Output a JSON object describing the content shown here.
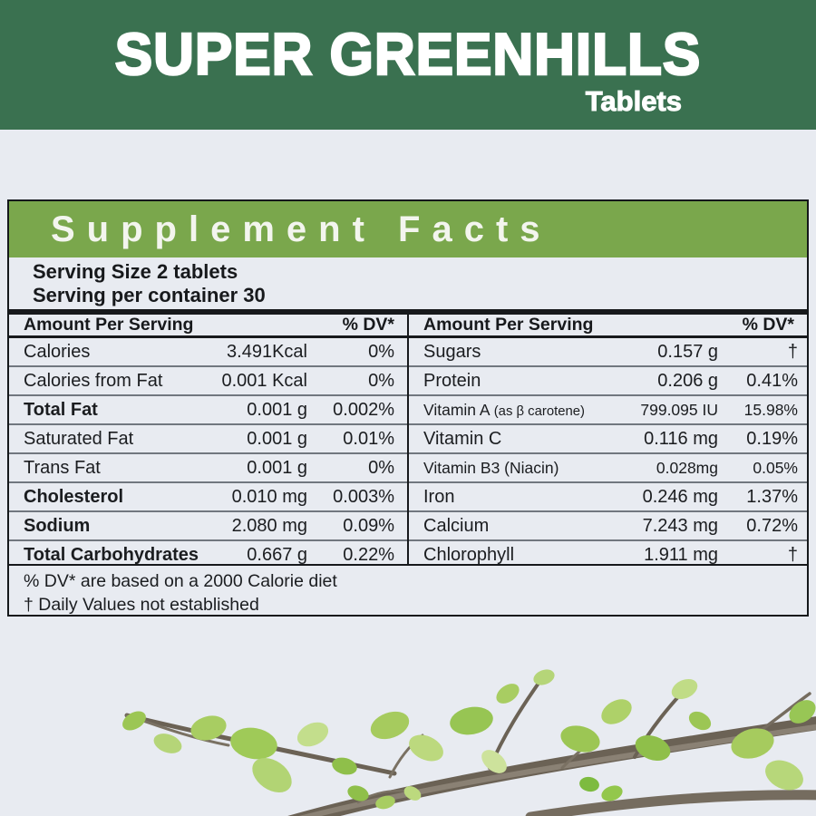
{
  "banner": {
    "title": "SUPER GREENHILLS",
    "subtitle": "Tablets",
    "bg_color": "#3a7150",
    "text_color": "#ffffff"
  },
  "panel": {
    "header": {
      "title": "Supplement Facts",
      "bg_color": "#7aa74c",
      "text_color": "#f3f5ee"
    },
    "serving": {
      "line1": "Serving Size 2 tablets",
      "line2": "Serving per container 30"
    },
    "columns": [
      {
        "header": {
          "amount_label": "Amount Per Serving",
          "dv_label": "% DV*"
        },
        "rows": [
          {
            "label": "Calories",
            "amount": "3.491Kcal",
            "dv": "0%",
            "bold": false
          },
          {
            "label": "Calories from Fat",
            "amount": "0.001 Kcal",
            "dv": "0%",
            "bold": false
          },
          {
            "label": "Total Fat",
            "amount": "0.001 g",
            "dv": "0.002%",
            "bold": true
          },
          {
            "label": "Saturated Fat",
            "amount": "0.001 g",
            "dv": "0.01%",
            "bold": false
          },
          {
            "label": "Trans Fat",
            "amount": "0.001 g",
            "dv": "0%",
            "bold": false
          },
          {
            "label": "Cholesterol",
            "amount": "0.010 mg",
            "dv": "0.003%",
            "bold": true
          },
          {
            "label": "Sodium",
            "amount": "2.080 mg",
            "dv": "0.09%",
            "bold": true
          },
          {
            "label": "Total Carbohydrates",
            "amount": "0.667 g",
            "dv": "0.22%",
            "bold": true
          }
        ]
      },
      {
        "header": {
          "amount_label": "Amount Per Serving",
          "dv_label": "% DV*"
        },
        "rows": [
          {
            "label": "Sugars",
            "amount": "0.157 g",
            "dv": "†",
            "bold": false
          },
          {
            "label": "Protein",
            "amount": "0.206 g",
            "dv": "0.41%",
            "bold": false
          },
          {
            "label": "Vitamin A",
            "label_note": "(as β carotene)",
            "amount": "799.095 IU",
            "dv": "15.98%",
            "bold": false,
            "compact": true
          },
          {
            "label": "Vitamin C",
            "amount": "0.116 mg",
            "dv": "0.19%",
            "bold": false
          },
          {
            "label": "Vitamin B3 (Niacin)",
            "amount": "0.028mg",
            "dv": "0.05%",
            "bold": false,
            "compact": true
          },
          {
            "label": "Iron",
            "amount": "0.246 mg",
            "dv": "1.37%",
            "bold": false
          },
          {
            "label": "Calcium",
            "amount": "7.243 mg",
            "dv": "0.72%",
            "bold": false
          },
          {
            "label": "Chlorophyll",
            "amount": "1.911 mg",
            "dv": "†",
            "bold": false
          }
        ]
      }
    ],
    "footnotes": [
      "% DV* are based on a 2000 Calorie diet",
      "† Daily Values not established"
    ]
  },
  "decoration": {
    "name": "branch-with-leaves",
    "branch_color": "#6b6255",
    "leaf_colors": [
      "#9cc654",
      "#b5d578",
      "#a8cd62",
      "#8fbf4a",
      "#cde29c"
    ]
  }
}
